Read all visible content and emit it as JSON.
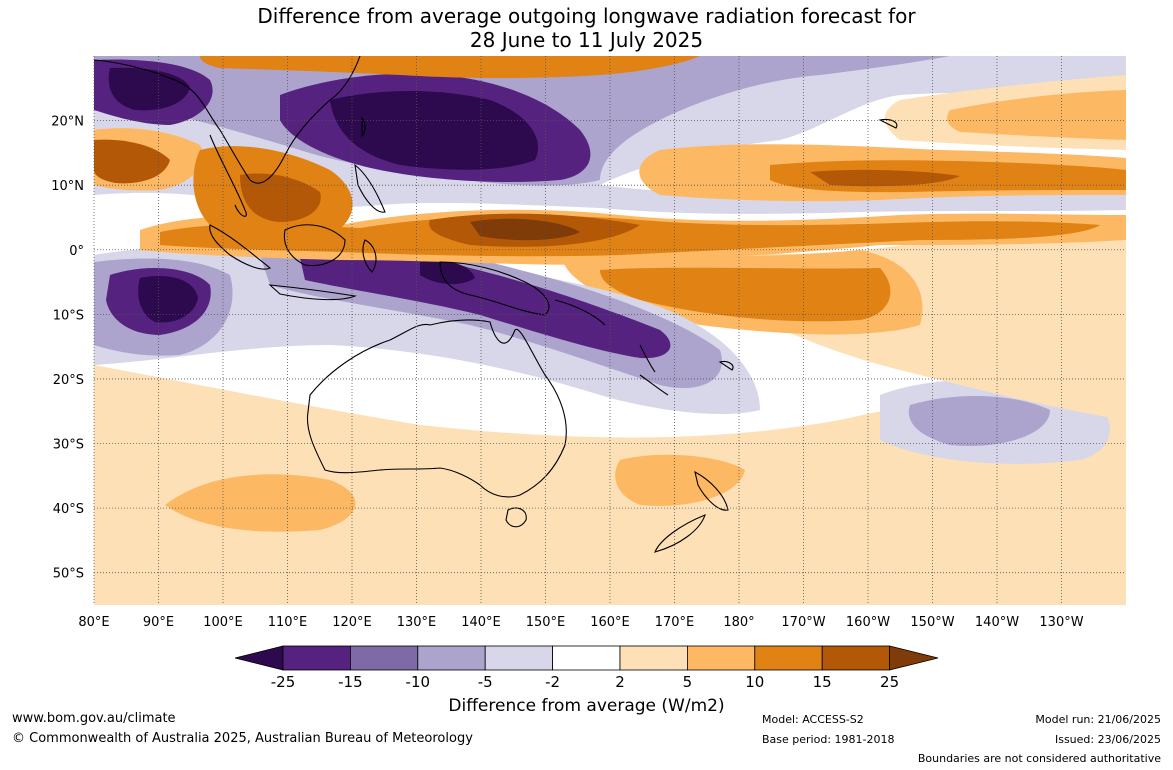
{
  "title": {
    "line1": "Difference from average outgoing longwave radiation forecast for",
    "line2": "28 June to 11 July 2025"
  },
  "axes": {
    "lon_labels": [
      "80°E",
      "90°E",
      "100°E",
      "110°E",
      "120°E",
      "130°E",
      "140°E",
      "150°E",
      "160°E",
      "170°E",
      "180°",
      "170°W",
      "160°W",
      "150°W",
      "140°W",
      "130°W"
    ],
    "lat_labels": [
      "20°N",
      "10°N",
      "0°",
      "10°S",
      "20°S",
      "30°S",
      "40°S",
      "50°S"
    ],
    "lon_range": [
      80,
      240
    ],
    "lat_range": [
      -55,
      30
    ]
  },
  "colorbar": {
    "title": "Difference from average (W/m2)",
    "ticks": [
      "-25",
      "-15",
      "-10",
      "-5",
      "-2",
      "2",
      "5",
      "10",
      "15",
      "25"
    ],
    "colors": [
      "#2d0a4e",
      "#55237f",
      "#7d6aa6",
      "#aca4cd",
      "#d8d7ea",
      "#ffffff",
      "#fee0b6",
      "#fdb863",
      "#e08214",
      "#b35806",
      "#7f3b08"
    ]
  },
  "footer": {
    "website": "www.bom.gov.au/climate",
    "copyright": "© Commonwealth of Australia 2025, Australian Bureau of Meteorology",
    "model": "Model: ACCESS-S2",
    "base_period": "Base period: 1981-2018",
    "model_run": "Model run: 21/06/2025",
    "issued": "Issued: 23/06/2025",
    "disclaimer": "Boundaries are not considered authoritative"
  }
}
